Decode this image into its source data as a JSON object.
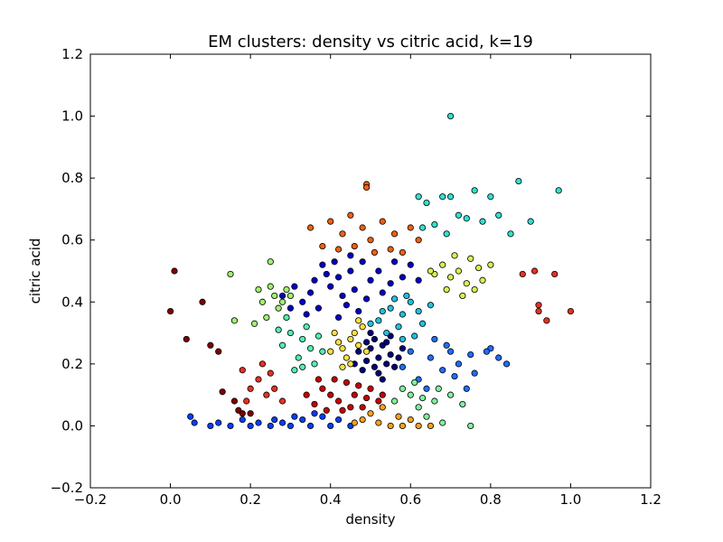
{
  "chart_data": {
    "type": "scatter",
    "title": "EM clusters: density vs citric acid, k=19",
    "xlabel": "density",
    "ylabel": "citric acid",
    "xlim": [
      -0.2,
      1.2
    ],
    "ylim": [
      -0.2,
      1.2
    ],
    "xticks": [
      -0.2,
      0.0,
      0.2,
      0.4,
      0.6,
      0.8,
      1.0,
      1.2
    ],
    "yticks": [
      -0.2,
      0.0,
      0.2,
      0.4,
      0.6,
      0.8,
      1.0,
      1.2
    ],
    "xtick_labels": [
      "−0.2",
      "0.0",
      "0.2",
      "0.4",
      "0.6",
      "0.8",
      "1.0",
      "1.2"
    ],
    "ytick_labels": [
      "−0.2",
      "0.0",
      "0.2",
      "0.4",
      "0.6",
      "0.8",
      "1.0",
      "1.2"
    ],
    "grid": false,
    "legend": false,
    "marker_edge_color": "#000000",
    "series": [
      {
        "color": "#000080",
        "points": [
          [
            0.5,
            0.25
          ],
          [
            0.52,
            0.22
          ],
          [
            0.54,
            0.2
          ],
          [
            0.48,
            0.18
          ],
          [
            0.53,
            0.26
          ],
          [
            0.51,
            0.28
          ],
          [
            0.55,
            0.23
          ],
          [
            0.49,
            0.21
          ],
          [
            0.56,
            0.19
          ],
          [
            0.52,
            0.17
          ],
          [
            0.5,
            0.3
          ],
          [
            0.47,
            0.24
          ],
          [
            0.54,
            0.27
          ],
          [
            0.57,
            0.22
          ],
          [
            0.51,
            0.19
          ],
          [
            0.53,
            0.15
          ],
          [
            0.49,
            0.27
          ],
          [
            0.55,
            0.29
          ],
          [
            0.58,
            0.25
          ],
          [
            0.46,
            0.2
          ]
        ]
      },
      {
        "color": "#0000cc",
        "points": [
          [
            0.38,
            0.52
          ],
          [
            0.42,
            0.48
          ],
          [
            0.45,
            0.5
          ],
          [
            0.4,
            0.45
          ],
          [
            0.35,
            0.43
          ],
          [
            0.48,
            0.53
          ],
          [
            0.5,
            0.47
          ],
          [
            0.43,
            0.42
          ],
          [
            0.37,
            0.38
          ],
          [
            0.33,
            0.4
          ],
          [
            0.52,
            0.5
          ],
          [
            0.55,
            0.46
          ],
          [
            0.46,
            0.44
          ],
          [
            0.39,
            0.49
          ],
          [
            0.41,
            0.53
          ],
          [
            0.44,
            0.39
          ],
          [
            0.36,
            0.47
          ],
          [
            0.49,
            0.41
          ],
          [
            0.53,
            0.43
          ],
          [
            0.31,
            0.45
          ],
          [
            0.58,
            0.48
          ],
          [
            0.6,
            0.52
          ],
          [
            0.34,
            0.36
          ],
          [
            0.47,
            0.37
          ],
          [
            0.42,
            0.35
          ],
          [
            0.28,
            0.42
          ],
          [
            0.56,
            0.53
          ],
          [
            0.3,
            0.38
          ],
          [
            0.62,
            0.47
          ],
          [
            0.45,
            0.55
          ]
        ]
      },
      {
        "color": "#0040ff",
        "points": [
          [
            0.1,
            0.0
          ],
          [
            0.15,
            0.0
          ],
          [
            0.2,
            0.0
          ],
          [
            0.25,
            0.0
          ],
          [
            0.3,
            0.0
          ],
          [
            0.35,
            0.0
          ],
          [
            0.4,
            0.0
          ],
          [
            0.45,
            0.0
          ],
          [
            0.33,
            0.02
          ],
          [
            0.38,
            0.03
          ],
          [
            0.28,
            0.01
          ],
          [
            0.42,
            0.02
          ],
          [
            0.22,
            0.01
          ],
          [
            0.12,
            0.01
          ],
          [
            0.18,
            0.02
          ],
          [
            0.05,
            0.03
          ],
          [
            0.06,
            0.01
          ],
          [
            0.36,
            0.04
          ],
          [
            0.26,
            0.02
          ],
          [
            0.31,
            0.03
          ]
        ]
      },
      {
        "color": "#1e6eff",
        "points": [
          [
            0.6,
            0.24
          ],
          [
            0.65,
            0.22
          ],
          [
            0.7,
            0.24
          ],
          [
            0.75,
            0.23
          ],
          [
            0.8,
            0.25
          ],
          [
            0.82,
            0.22
          ],
          [
            0.84,
            0.2
          ],
          [
            0.68,
            0.18
          ],
          [
            0.72,
            0.2
          ],
          [
            0.62,
            0.15
          ],
          [
            0.66,
            0.28
          ],
          [
            0.58,
            0.19
          ],
          [
            0.76,
            0.17
          ],
          [
            0.64,
            0.12
          ],
          [
            0.71,
            0.16
          ],
          [
            0.74,
            0.12
          ],
          [
            0.79,
            0.24
          ],
          [
            0.69,
            0.26
          ]
        ]
      },
      {
        "color": "#20c0e0",
        "points": [
          [
            0.55,
            0.38
          ],
          [
            0.58,
            0.36
          ],
          [
            0.6,
            0.4
          ],
          [
            0.52,
            0.34
          ],
          [
            0.57,
            0.32
          ],
          [
            0.62,
            0.37
          ],
          [
            0.54,
            0.3
          ],
          [
            0.59,
            0.42
          ],
          [
            0.63,
            0.33
          ],
          [
            0.56,
            0.41
          ],
          [
            0.61,
            0.29
          ],
          [
            0.53,
            0.37
          ],
          [
            0.65,
            0.39
          ],
          [
            0.5,
            0.33
          ],
          [
            0.58,
            0.28
          ]
        ]
      },
      {
        "color": "#30e0d0",
        "points": [
          [
            0.62,
            0.74
          ],
          [
            0.68,
            0.74
          ],
          [
            0.7,
            0.74
          ],
          [
            0.76,
            0.76
          ],
          [
            0.8,
            0.74
          ],
          [
            0.87,
            0.79
          ],
          [
            0.97,
            0.76
          ],
          [
            0.7,
            1.0
          ],
          [
            0.64,
            0.72
          ],
          [
            0.72,
            0.68
          ],
          [
            0.66,
            0.65
          ],
          [
            0.74,
            0.67
          ],
          [
            0.78,
            0.66
          ],
          [
            0.82,
            0.68
          ],
          [
            0.85,
            0.62
          ],
          [
            0.9,
            0.66
          ],
          [
            0.69,
            0.62
          ],
          [
            0.63,
            0.64
          ]
        ]
      },
      {
        "color": "#50f0b0",
        "points": [
          [
            0.3,
            0.3
          ],
          [
            0.33,
            0.28
          ],
          [
            0.35,
            0.25
          ],
          [
            0.32,
            0.22
          ],
          [
            0.28,
            0.26
          ],
          [
            0.36,
            0.2
          ],
          [
            0.34,
            0.32
          ],
          [
            0.29,
            0.35
          ],
          [
            0.31,
            0.18
          ],
          [
            0.37,
            0.29
          ],
          [
            0.27,
            0.31
          ],
          [
            0.33,
            0.19
          ],
          [
            0.38,
            0.24
          ]
        ]
      },
      {
        "color": "#80f0a0",
        "points": [
          [
            0.6,
            0.1
          ],
          [
            0.63,
            0.09
          ],
          [
            0.66,
            0.08
          ],
          [
            0.58,
            0.12
          ],
          [
            0.62,
            0.06
          ],
          [
            0.67,
            0.12
          ],
          [
            0.7,
            0.1
          ],
          [
            0.73,
            0.07
          ],
          [
            0.75,
            0.0
          ],
          [
            0.68,
            0.01
          ],
          [
            0.64,
            0.03
          ],
          [
            0.56,
            0.08
          ],
          [
            0.61,
            0.14
          ]
        ]
      },
      {
        "color": "#a0f070",
        "points": [
          [
            0.26,
            0.42
          ],
          [
            0.28,
            0.4
          ],
          [
            0.3,
            0.42
          ],
          [
            0.25,
            0.45
          ],
          [
            0.27,
            0.38
          ],
          [
            0.22,
            0.44
          ],
          [
            0.24,
            0.35
          ],
          [
            0.23,
            0.4
          ],
          [
            0.21,
            0.33
          ],
          [
            0.16,
            0.34
          ],
          [
            0.15,
            0.49
          ],
          [
            0.25,
            0.53
          ],
          [
            0.29,
            0.44
          ]
        ]
      },
      {
        "color": "#d8f050",
        "points": [
          [
            0.68,
            0.52
          ],
          [
            0.72,
            0.5
          ],
          [
            0.75,
            0.54
          ],
          [
            0.7,
            0.48
          ],
          [
            0.74,
            0.46
          ],
          [
            0.77,
            0.51
          ],
          [
            0.8,
            0.52
          ],
          [
            0.66,
            0.49
          ],
          [
            0.78,
            0.47
          ],
          [
            0.71,
            0.55
          ],
          [
            0.76,
            0.44
          ],
          [
            0.73,
            0.42
          ],
          [
            0.69,
            0.44
          ],
          [
            0.65,
            0.5
          ]
        ]
      },
      {
        "color": "#f8e040",
        "points": [
          [
            0.45,
            0.28
          ],
          [
            0.47,
            0.26
          ],
          [
            0.43,
            0.25
          ],
          [
            0.46,
            0.3
          ],
          [
            0.48,
            0.32
          ],
          [
            0.44,
            0.22
          ],
          [
            0.42,
            0.27
          ],
          [
            0.49,
            0.24
          ],
          [
            0.45,
            0.2
          ],
          [
            0.41,
            0.3
          ],
          [
            0.47,
            0.34
          ],
          [
            0.43,
            0.19
          ],
          [
            0.4,
            0.24
          ]
        ]
      },
      {
        "color": "#f8a020",
        "points": [
          [
            0.48,
            0.02
          ],
          [
            0.52,
            0.01
          ],
          [
            0.55,
            0.0
          ],
          [
            0.58,
            0.0
          ],
          [
            0.62,
            0.0
          ],
          [
            0.5,
            0.04
          ],
          [
            0.53,
            0.06
          ],
          [
            0.46,
            0.01
          ],
          [
            0.57,
            0.03
          ],
          [
            0.6,
            0.02
          ],
          [
            0.65,
            0.0
          ]
        ]
      },
      {
        "color": "#f06010",
        "points": [
          [
            0.4,
            0.66
          ],
          [
            0.43,
            0.62
          ],
          [
            0.45,
            0.68
          ],
          [
            0.48,
            0.64
          ],
          [
            0.5,
            0.6
          ],
          [
            0.53,
            0.66
          ],
          [
            0.56,
            0.62
          ],
          [
            0.58,
            0.56
          ],
          [
            0.49,
            0.78
          ],
          [
            0.49,
            0.77
          ],
          [
            0.35,
            0.64
          ],
          [
            0.38,
            0.58
          ],
          [
            0.42,
            0.57
          ],
          [
            0.46,
            0.58
          ],
          [
            0.6,
            0.64
          ],
          [
            0.62,
            0.6
          ],
          [
            0.55,
            0.57
          ],
          [
            0.51,
            0.56
          ]
        ]
      },
      {
        "color": "#e83020",
        "points": [
          [
            0.18,
            0.18
          ],
          [
            0.2,
            0.12
          ],
          [
            0.22,
            0.15
          ],
          [
            0.24,
            0.1
          ],
          [
            0.26,
            0.12
          ],
          [
            0.19,
            0.08
          ],
          [
            0.28,
            0.08
          ],
          [
            0.23,
            0.2
          ],
          [
            0.25,
            0.17
          ],
          [
            0.88,
            0.49
          ],
          [
            0.91,
            0.5
          ],
          [
            0.96,
            0.49
          ],
          [
            0.92,
            0.39
          ],
          [
            0.92,
            0.37
          ],
          [
            0.94,
            0.34
          ],
          [
            1.0,
            0.37
          ]
        ]
      },
      {
        "color": "#cc0000",
        "points": [
          [
            0.38,
            0.12
          ],
          [
            0.4,
            0.1
          ],
          [
            0.42,
            0.08
          ],
          [
            0.44,
            0.14
          ],
          [
            0.46,
            0.1
          ],
          [
            0.48,
            0.06
          ],
          [
            0.36,
            0.07
          ],
          [
            0.5,
            0.12
          ],
          [
            0.52,
            0.08
          ],
          [
            0.34,
            0.1
          ],
          [
            0.41,
            0.15
          ],
          [
            0.47,
            0.13
          ],
          [
            0.43,
            0.05
          ],
          [
            0.53,
            0.1
          ],
          [
            0.37,
            0.15
          ],
          [
            0.39,
            0.05
          ],
          [
            0.45,
            0.06
          ],
          [
            0.49,
            0.09
          ]
        ]
      },
      {
        "color": "#800000",
        "points": [
          [
            0.0,
            0.37
          ],
          [
            0.01,
            0.5
          ],
          [
            0.04,
            0.28
          ],
          [
            0.08,
            0.4
          ],
          [
            0.1,
            0.26
          ],
          [
            0.12,
            0.24
          ],
          [
            0.13,
            0.11
          ],
          [
            0.16,
            0.08
          ],
          [
            0.17,
            0.05
          ],
          [
            0.18,
            0.04
          ],
          [
            0.2,
            0.04
          ]
        ]
      }
    ]
  }
}
